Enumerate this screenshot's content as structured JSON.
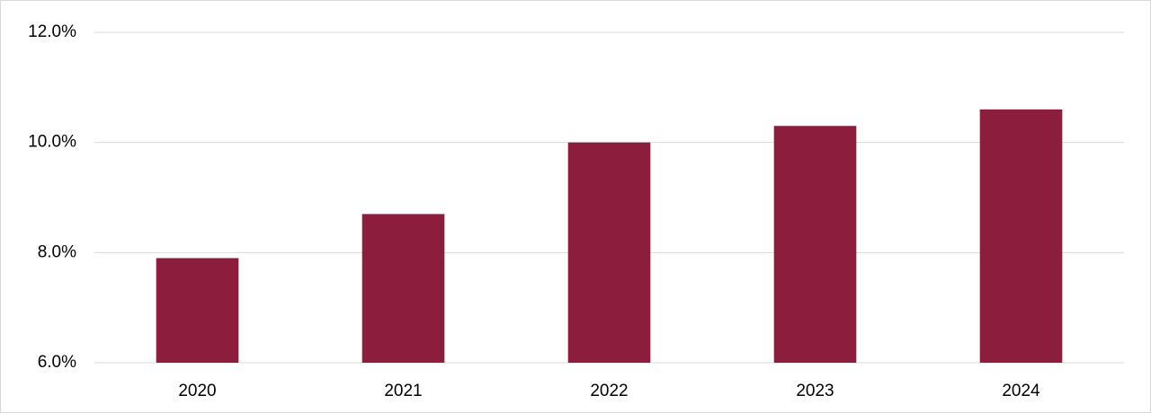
{
  "chart_data": {
    "type": "bar",
    "categories": [
      "2020",
      "2021",
      "2022",
      "2023",
      "2024"
    ],
    "values": [
      7.9,
      8.7,
      10.0,
      10.3,
      10.6
    ],
    "color": "#8c1d3c",
    "ylim": [
      6,
      12
    ],
    "yticks": [
      {
        "value": 6,
        "label": "6.0%"
      },
      {
        "value": 8,
        "label": "8.0%"
      },
      {
        "value": 10,
        "label": "10.0%"
      },
      {
        "value": 12,
        "label": "12.0%"
      }
    ],
    "grid": true
  }
}
